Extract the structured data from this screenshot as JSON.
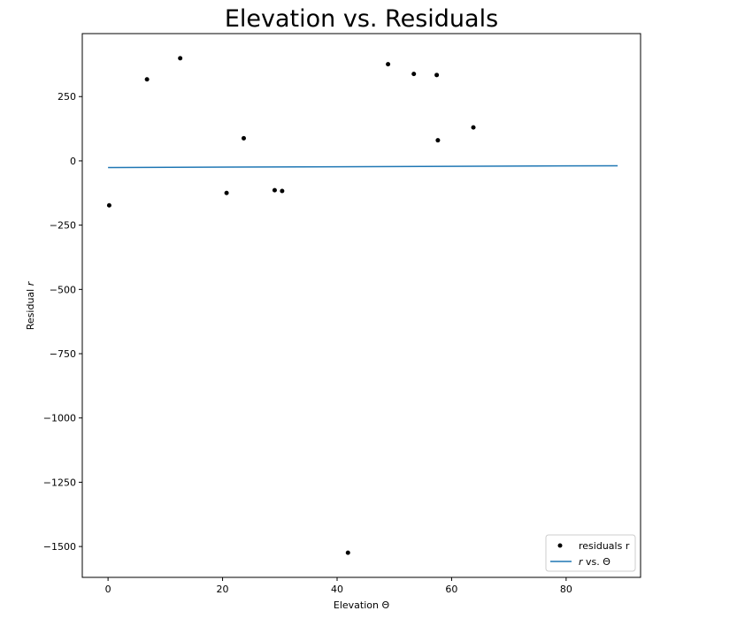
{
  "chart_data": {
    "type": "scatter",
    "title": "Elevation vs. Residuals",
    "xlabel": "Elevation Θ",
    "ylabel": "Residual r",
    "xlim": [
      -4.5,
      93
    ],
    "ylim": [
      -1620,
      495
    ],
    "xticks": [
      0,
      20,
      40,
      60,
      80
    ],
    "yticks": [
      250,
      0,
      -250,
      -500,
      -750,
      -1000,
      -1250,
      -1500
    ],
    "xtick_labels": [
      "0",
      "20",
      "40",
      "60",
      "80"
    ],
    "ytick_labels": [
      "250",
      "0",
      "−250",
      "−500",
      "−750",
      "−1000",
      "−1250",
      "−1500"
    ],
    "grid": false,
    "legend_position": "lower-right",
    "series": [
      {
        "name": "residuals r",
        "kind": "scatter",
        "color": "#000000",
        "points": [
          {
            "x": 0.2,
            "y": -173
          },
          {
            "x": 6.8,
            "y": 317
          },
          {
            "x": 12.6,
            "y": 399
          },
          {
            "x": 20.7,
            "y": -125
          },
          {
            "x": 23.7,
            "y": 88
          },
          {
            "x": 29.1,
            "y": -114
          },
          {
            "x": 30.4,
            "y": -117
          },
          {
            "x": 41.9,
            "y": -1524
          },
          {
            "x": 48.9,
            "y": 376
          },
          {
            "x": 53.4,
            "y": 338
          },
          {
            "x": 57.4,
            "y": 334
          },
          {
            "x": 57.6,
            "y": 80
          },
          {
            "x": 63.8,
            "y": 130
          }
        ]
      },
      {
        "name": "r vs. Θ",
        "kind": "line",
        "color": "#1f77b4",
        "points": [
          {
            "x": 0,
            "y": -26
          },
          {
            "x": 89,
            "y": -19
          }
        ]
      }
    ],
    "legend": {
      "scatter_label": "residuals r",
      "line_label_italic": "r",
      "line_label_rest": " vs. Θ"
    }
  }
}
